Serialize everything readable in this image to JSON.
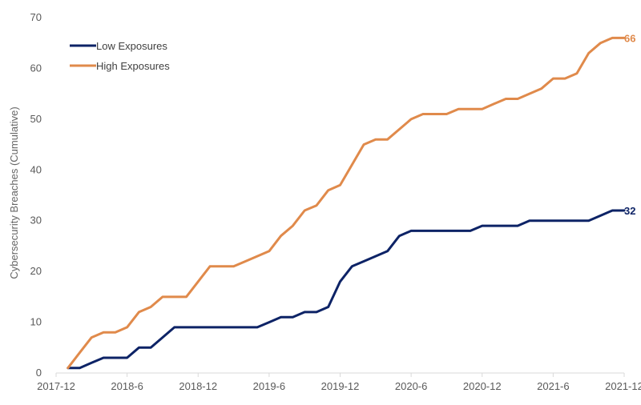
{
  "chart_data": {
    "type": "line",
    "ylabel": "Cybersecurity Breaches (Cumulative)",
    "xlabel": "",
    "ylim": [
      0,
      70
    ],
    "yticks": [
      0,
      10,
      20,
      30,
      40,
      50,
      60,
      70
    ],
    "x_tick_labels": [
      "2017-12",
      "2018-6",
      "2018-12",
      "2019-6",
      "2019-12",
      "2020-6",
      "2020-12",
      "2021-6",
      "2021-12"
    ],
    "x_start": "2018-01",
    "x": [
      "2018-01",
      "2018-02",
      "2018-03",
      "2018-04",
      "2018-05",
      "2018-06",
      "2018-07",
      "2018-08",
      "2018-09",
      "2018-10",
      "2018-11",
      "2018-12",
      "2019-01",
      "2019-02",
      "2019-03",
      "2019-04",
      "2019-05",
      "2019-06",
      "2019-07",
      "2019-08",
      "2019-09",
      "2019-10",
      "2019-11",
      "2019-12",
      "2020-01",
      "2020-02",
      "2020-03",
      "2020-04",
      "2020-05",
      "2020-06",
      "2020-07",
      "2020-08",
      "2020-09",
      "2020-10",
      "2020-11",
      "2020-12",
      "2021-01",
      "2021-02",
      "2021-03",
      "2021-04",
      "2021-05",
      "2021-06",
      "2021-07",
      "2021-08",
      "2021-09",
      "2021-10",
      "2021-11",
      "2021-12"
    ],
    "grid": false,
    "legend_position": "top-left",
    "series": [
      {
        "name": "Low Exposures",
        "color": "#0d2366",
        "end_label": "32",
        "values": [
          1,
          1,
          2,
          3,
          3,
          3,
          5,
          5,
          7,
          9,
          9,
          9,
          9,
          9,
          9,
          9,
          9,
          10,
          11,
          11,
          12,
          12,
          13,
          18,
          21,
          22,
          23,
          24,
          27,
          28,
          28,
          28,
          28,
          28,
          28,
          29,
          29,
          29,
          29,
          30,
          30,
          30,
          30,
          30,
          30,
          31,
          32,
          32
        ]
      },
      {
        "name": "High Exposures",
        "color": "#e08a4b",
        "end_label": "66",
        "values": [
          1,
          4,
          7,
          8,
          8,
          9,
          12,
          13,
          15,
          15,
          15,
          18,
          21,
          21,
          21,
          22,
          23,
          24,
          27,
          29,
          32,
          33,
          36,
          37,
          41,
          45,
          46,
          46,
          48,
          50,
          51,
          51,
          51,
          52,
          52,
          52,
          53,
          54,
          54,
          55,
          56,
          58,
          58,
          59,
          63,
          65,
          66,
          66
        ]
      }
    ]
  }
}
